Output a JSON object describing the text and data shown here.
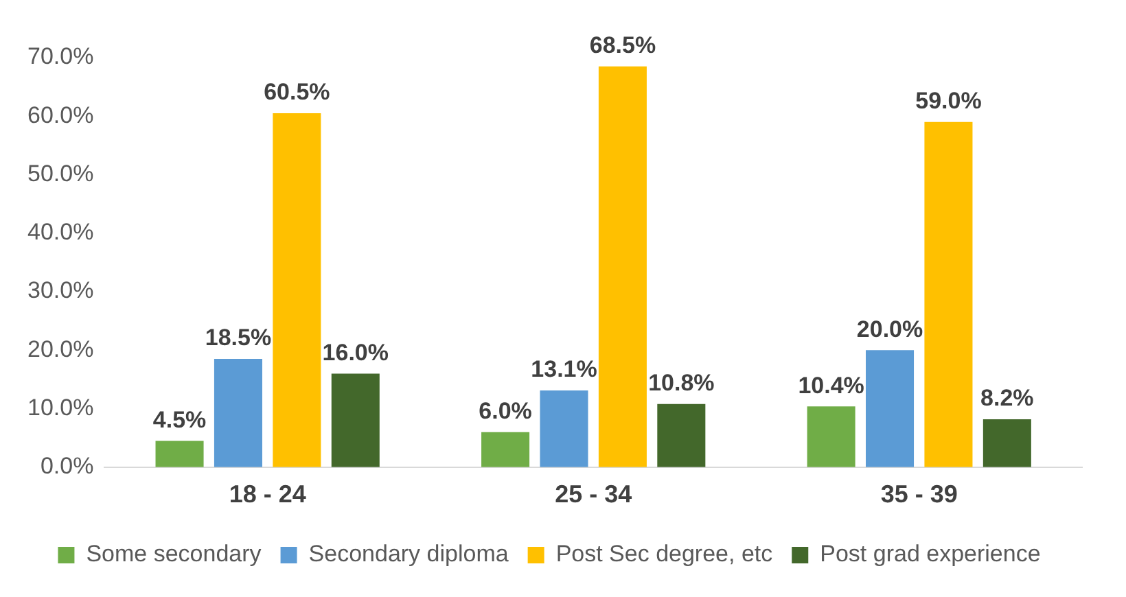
{
  "chart_data": {
    "type": "bar",
    "categories": [
      "18 - 24",
      "25 - 34",
      "35 - 39"
    ],
    "series": [
      {
        "name": "Some secondary",
        "color": "#70ad47",
        "values": [
          4.5,
          6.0,
          10.4
        ],
        "value_labels": [
          "4.5%",
          "6.0%",
          "10.4%"
        ]
      },
      {
        "name": "Secondary diploma",
        "color": "#5b9bd5",
        "values": [
          18.5,
          13.1,
          20.0
        ],
        "value_labels": [
          "18.5%",
          "13.1%",
          "20.0%"
        ]
      },
      {
        "name": "Post Sec degree, etc",
        "color": "#ffc000",
        "values": [
          60.5,
          68.5,
          59.0
        ],
        "value_labels": [
          "60.5%",
          "68.5%",
          "59.0%"
        ]
      },
      {
        "name": "Post grad experience",
        "color": "#43682b",
        "values": [
          16.0,
          10.8,
          8.2
        ],
        "value_labels": [
          "16.0%",
          "10.8%",
          "8.2%"
        ]
      }
    ],
    "ylim": [
      0,
      70
    ],
    "yticks": [
      {
        "value": 0,
        "label": "0.0%"
      },
      {
        "value": 10,
        "label": "10.0%"
      },
      {
        "value": 20,
        "label": "20.0%"
      },
      {
        "value": 30,
        "label": "30.0%"
      },
      {
        "value": 40,
        "label": "40.0%"
      },
      {
        "value": 50,
        "label": "50.0%"
      },
      {
        "value": 60,
        "label": "60.0%"
      },
      {
        "value": 70,
        "label": "70.0%"
      }
    ],
    "grid": false,
    "legend": "bottom"
  }
}
